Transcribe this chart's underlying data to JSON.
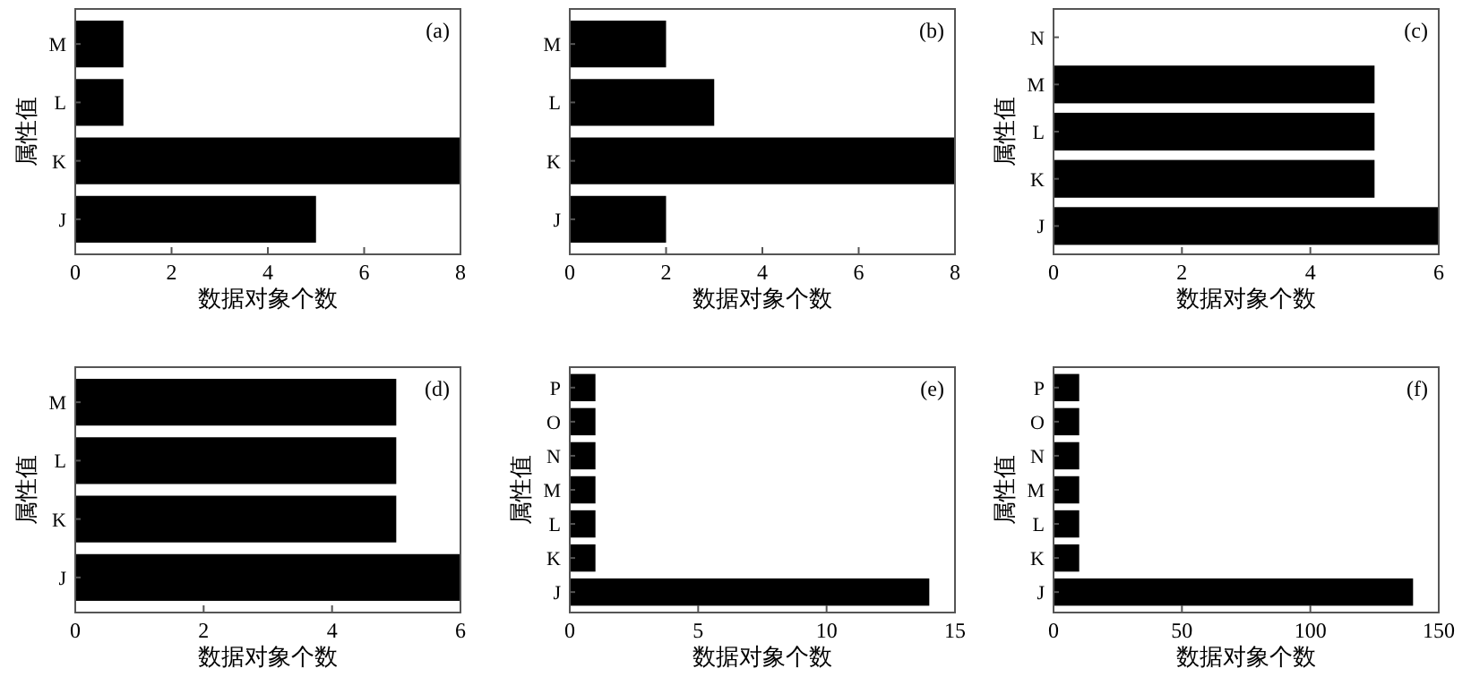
{
  "chart_data": [
    {
      "type": "bar",
      "orientation": "horizontal",
      "categories": [
        "M",
        "L",
        "K",
        "J"
      ],
      "values": [
        1,
        1,
        8,
        5
      ],
      "color": "#000000",
      "xlim": [
        0,
        8
      ],
      "xticks": [
        0,
        2,
        4,
        6,
        8
      ],
      "xlabel": "数据对象个数",
      "ylabel": "属性值",
      "annotations": [
        "(a)"
      ],
      "grid": false
    },
    {
      "type": "bar",
      "orientation": "horizontal",
      "categories": [
        "M",
        "L",
        "K",
        "J"
      ],
      "values": [
        2,
        3,
        8,
        2
      ],
      "color": "#000000",
      "xlim": [
        0,
        8
      ],
      "xticks": [
        0,
        2,
        4,
        6,
        8
      ],
      "xlabel": "数据对象个数",
      "annotations": [
        "(b)"
      ],
      "grid": false
    },
    {
      "type": "bar",
      "orientation": "horizontal",
      "categories": [
        "N",
        "M",
        "L",
        "K",
        "J"
      ],
      "values": [
        0,
        5,
        5,
        5,
        6
      ],
      "color": "#000000",
      "xlim": [
        0,
        6
      ],
      "xticks": [
        0,
        2,
        4,
        6
      ],
      "xlabel": "数据对象个数",
      "ylabel": "属性值",
      "annotations": [
        "(c)"
      ],
      "grid": false
    },
    {
      "type": "bar",
      "orientation": "horizontal",
      "categories": [
        "M",
        "L",
        "K",
        "J"
      ],
      "values": [
        5,
        5,
        5,
        6
      ],
      "color": "#000000",
      "xlim": [
        0,
        6
      ],
      "xticks": [
        0,
        2,
        4,
        6
      ],
      "xlabel": "数据对象个数",
      "ylabel": "属性值",
      "annotations": [
        "(d)"
      ],
      "grid": false
    },
    {
      "type": "bar",
      "orientation": "horizontal",
      "categories": [
        "P",
        "O",
        "N",
        "M",
        "L",
        "K",
        "J"
      ],
      "values": [
        1,
        1,
        1,
        1,
        1,
        1,
        14
      ],
      "color": "#000000",
      "xlim": [
        0,
        15
      ],
      "xticks": [
        0,
        5,
        10,
        15
      ],
      "xlabel": "数据对象个数",
      "ylabel": "属性值",
      "annotations": [
        "(e)"
      ],
      "grid": false
    },
    {
      "type": "bar",
      "orientation": "horizontal",
      "categories": [
        "P",
        "O",
        "N",
        "M",
        "L",
        "K",
        "J"
      ],
      "values": [
        10,
        10,
        10,
        10,
        10,
        10,
        140
      ],
      "color": "#000000",
      "xlim": [
        0,
        150
      ],
      "xticks": [
        0,
        50,
        100,
        150
      ],
      "xlabel": "数据对象个数",
      "ylabel": "属性值",
      "annotations": [
        "(f)"
      ],
      "grid": false
    }
  ]
}
